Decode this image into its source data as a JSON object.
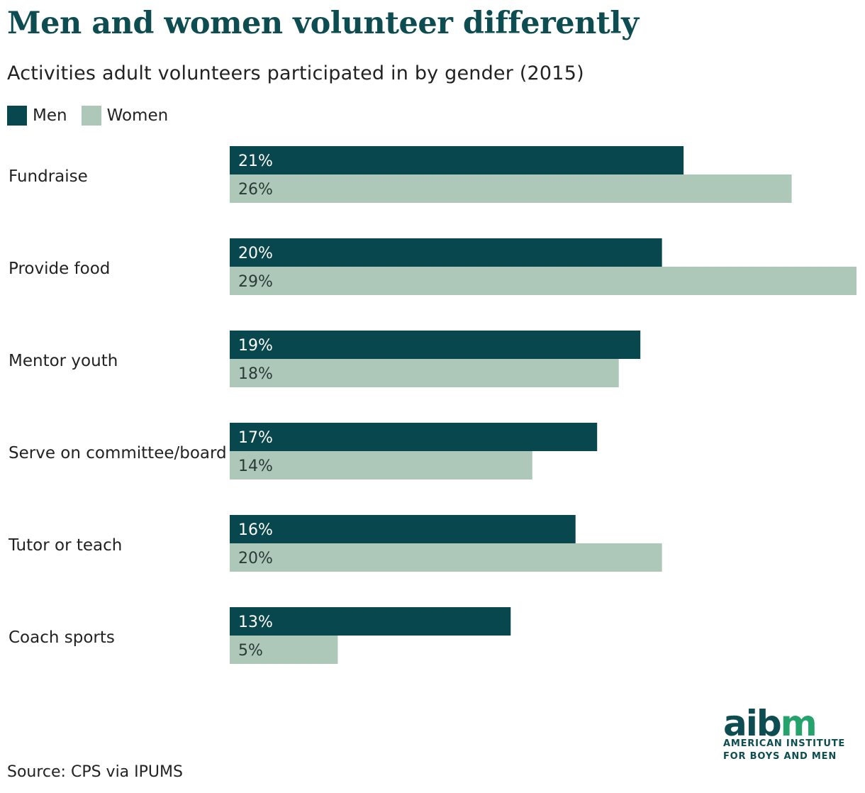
{
  "colors": {
    "men": "#08474d",
    "women": "#adc8b9",
    "title": "#0d4c50",
    "text": "#222222",
    "logo_accent": "#26a36c"
  },
  "title": "Men and women volunteer differently",
  "subtitle": "Activities adult volunteers participated in by gender (2015)",
  "source": "Source: CPS via IPUMS",
  "logo": {
    "mark_left": "aib",
    "mark_right": "m",
    "line1": "AMERICAN INSTITUTE",
    "line2": "FOR BOYS AND MEN"
  },
  "chart_data": {
    "type": "bar",
    "orientation": "horizontal",
    "title": "Men and women volunteer differently",
    "subtitle": "Activities adult volunteers participated in by gender (2015)",
    "legend": "top-left",
    "grid": false,
    "xlim": [
      0,
      29
    ],
    "categories": [
      "Fundraise",
      "Provide food",
      "Mentor youth",
      "Serve on committee/board",
      "Tutor or teach",
      "Coach sports"
    ],
    "series": [
      {
        "name": "Men",
        "values": [
          21,
          20,
          19,
          17,
          16,
          13
        ],
        "labels": [
          "21%",
          "20%",
          "19%",
          "17%",
          "16%",
          "13%"
        ]
      },
      {
        "name": "Women",
        "values": [
          26,
          29,
          18,
          14,
          20,
          5
        ],
        "labels": [
          "26%",
          "29%",
          "18%",
          "14%",
          "20%",
          "5%"
        ]
      }
    ]
  }
}
